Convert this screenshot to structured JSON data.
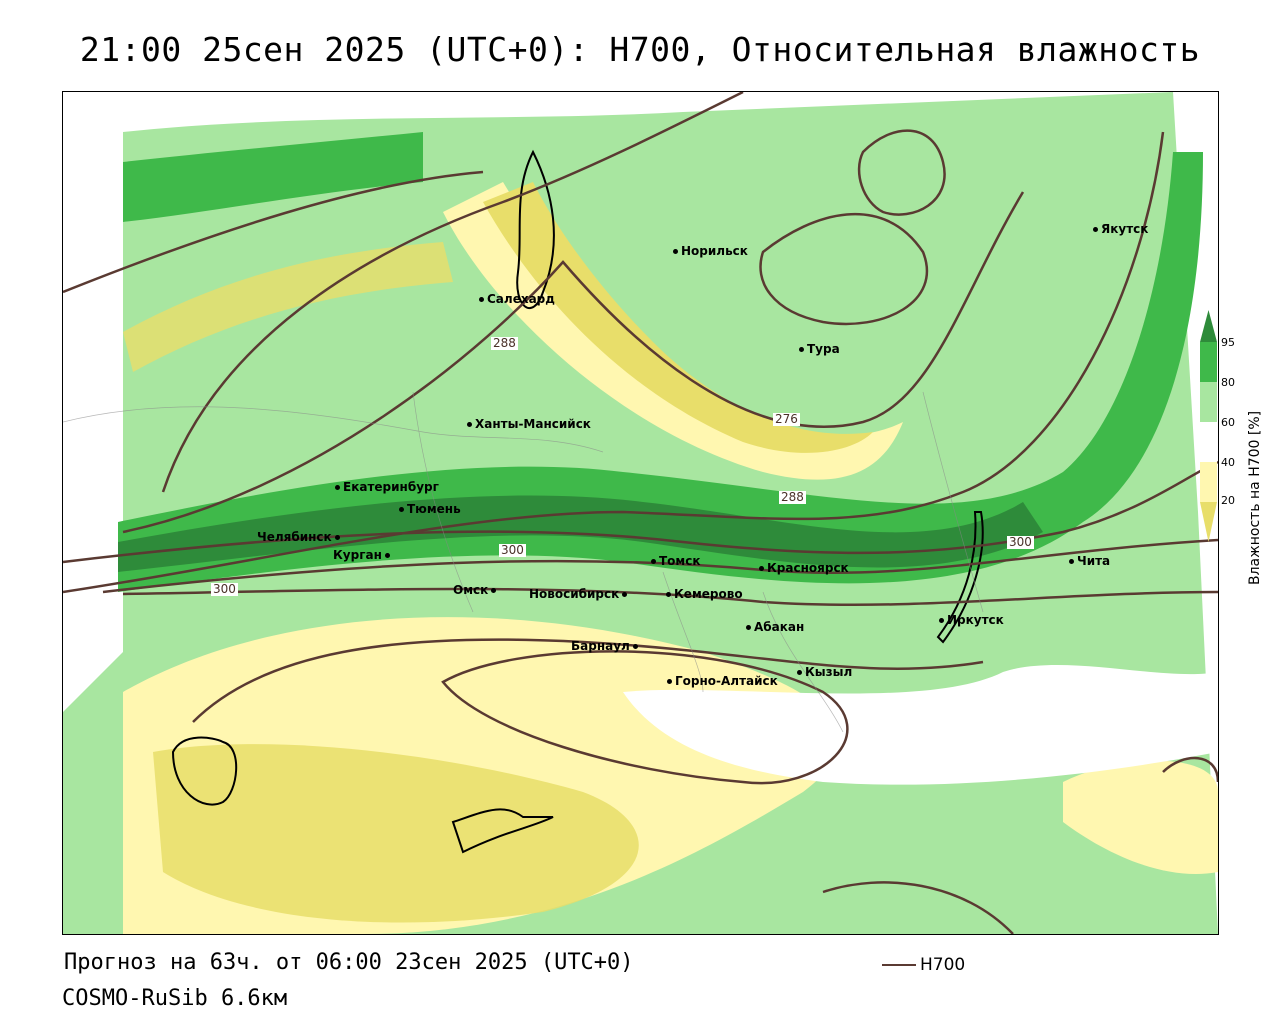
{
  "title": "21:00 25сен 2025 (UTC+0): H700, Относительная влажность",
  "footer": {
    "forecast": "Прогноз на 63ч. от 06:00 23сен 2025 (UTC+0)",
    "model": "COSMO-RuSib 6.6км",
    "legend_label": "H700"
  },
  "colorbar": {
    "title": "Влажность на H700 [%]",
    "ticks": [
      "95",
      "80",
      "60",
      "40",
      "20"
    ],
    "colors": [
      "#2e8b3a",
      "#3fb94a",
      "#a8e6a0",
      "#ffffff",
      "#fff7b0",
      "#e8de6a"
    ]
  },
  "contour_labels": [
    "288",
    "276",
    "288",
    "300",
    "300",
    "300"
  ],
  "cities": {
    "norilsk": "Норильск",
    "yakutsk": "Якутск",
    "salekhard": "Салехард",
    "tura": "Тура",
    "khanty": "Ханты-Мансийск",
    "ekaterinburg": "Екатеринбург",
    "tyumen": "Тюмень",
    "chelyabinsk": "Челябинск",
    "kurgan": "Курган",
    "omsk": "Омск",
    "novosibirsk": "Новосибирск",
    "tomsk": "Томск",
    "krasnoyarsk": "Красноярск",
    "kemerovo": "Кемерово",
    "abakan": "Абакан",
    "barnaul": "Барнаул",
    "gorno": "Горно-Алтайск",
    "kyzyl": "Кызыл",
    "irkutsk": "Иркутск",
    "chita": "Чита"
  },
  "colors": {
    "contour": "#5a3a32",
    "humid_dark": "#2e8b3a",
    "humid_mid": "#3fb94a",
    "humid_light": "#a8e6a0",
    "dry_light": "#fff7b0",
    "dry_dark": "#e8de6a"
  }
}
